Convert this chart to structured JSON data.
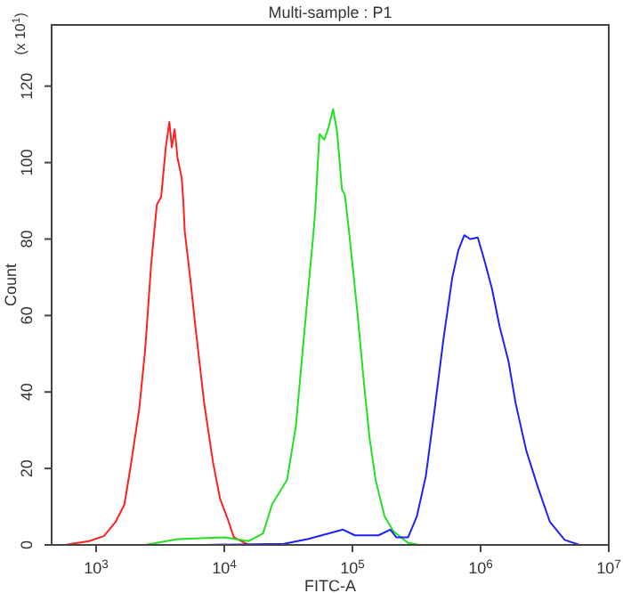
{
  "chart_data": {
    "type": "line",
    "title": "Multi-sample : P1",
    "xlabel": "FITC-A",
    "ylabel": "Count",
    "annotations": [
      "(x 10$^{1}$)"
    ],
    "log": "x",
    "xlim": [
      450,
      10000000
    ],
    "xticks": [
      {
        "value": 1000,
        "label": "10$^{3}$"
      },
      {
        "value": 10000,
        "label": "10$^{4}$"
      },
      {
        "value": 100000,
        "label": "10$^{5}$"
      },
      {
        "value": 1000000,
        "label": "10$^{6}$"
      },
      {
        "value": 10000000,
        "label": "10$^{7}$"
      }
    ],
    "ylim": [
      0,
      136
    ],
    "yticks": [
      0,
      20,
      40,
      60,
      80,
      100,
      120
    ],
    "series": [
      {
        "color": "#ff2020",
        "x": [
          575,
          880,
          1150,
          1420,
          1665,
          1890,
          2170,
          2415,
          2685,
          2980,
          3220,
          3500,
          3730,
          3900,
          4100,
          4330,
          4660,
          4810,
          4920,
          5460,
          5960,
          6980,
          8180,
          9290,
          10660,
          11880,
          15500
        ],
        "values": [
          0,
          1,
          2.3,
          6,
          10.6,
          22,
          35.5,
          51,
          73,
          89,
          91,
          104,
          110.6,
          104,
          108.7,
          101,
          96,
          89,
          82,
          69,
          57,
          37,
          21.5,
          12,
          6.7,
          2,
          0
        ]
      },
      {
        "color": "#22e022",
        "x": [
          2415,
          4330,
          10100,
          15500,
          20100,
          23600,
          30900,
          36200,
          40200,
          44700,
          49800,
          51400,
          55300,
          60300,
          64900,
          70700,
          76000,
          82800,
          87100,
          89100,
          94100,
          110000,
          122500,
          136000,
          151700,
          178000,
          208500,
          272000,
          336000
        ],
        "values": [
          0,
          1.5,
          2,
          1,
          3,
          10.6,
          17,
          31,
          48,
          65,
          82,
          88,
          107.5,
          106,
          109,
          114,
          108,
          93,
          91.6,
          89,
          82,
          60,
          43,
          28,
          17,
          7.5,
          3.6,
          0.5,
          0
        ]
      },
      {
        "color": "#2020ff",
        "x": [
          6980,
          29200,
          44700,
          84500,
          104500,
          159600,
          197500,
          220000,
          272000,
          318500,
          374000,
          438000,
          514000,
          602000,
          670000,
          746000,
          828000,
          951000,
          1080000,
          1227000,
          1410000,
          1652000,
          1878000,
          2275000,
          2806000,
          3475000,
          4530000,
          5910000
        ],
        "values": [
          0,
          0.3,
          1.5,
          4,
          2.5,
          2.5,
          4,
          2,
          2,
          7.5,
          18,
          35.5,
          54,
          70,
          77,
          81,
          80,
          80.4,
          74,
          67,
          57,
          48,
          37,
          24.6,
          15,
          6,
          1.3,
          0
        ]
      }
    ]
  }
}
